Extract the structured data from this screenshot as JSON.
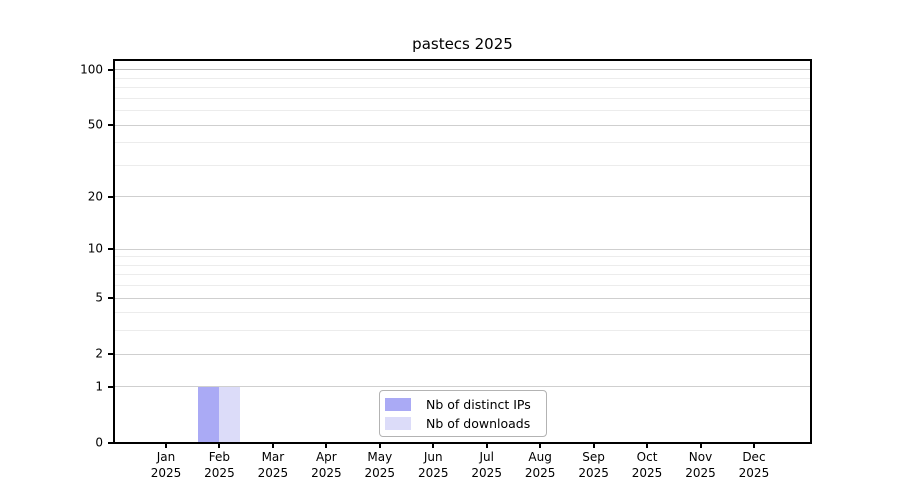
{
  "chart_data": {
    "type": "bar",
    "title": "pastecs 2025",
    "categories": [
      "Jan",
      "Feb",
      "Mar",
      "Apr",
      "May",
      "Jun",
      "Jul",
      "Aug",
      "Sep",
      "Oct",
      "Nov",
      "Dec"
    ],
    "category_year": "2025",
    "series": [
      {
        "name": "Nb of distinct IPs",
        "color": "#aaaaf5",
        "values": [
          0,
          1,
          0,
          0,
          0,
          0,
          0,
          0,
          0,
          0,
          0,
          0
        ]
      },
      {
        "name": "Nb of downloads",
        "color": "#dcdcf9",
        "values": [
          0,
          1,
          0,
          0,
          0,
          0,
          0,
          0,
          0,
          0,
          0,
          0
        ]
      }
    ],
    "yscale": "log1p",
    "ylim": [
      0,
      113
    ],
    "yticks": [
      0,
      1,
      2,
      5,
      10,
      20,
      50,
      100
    ],
    "yticks_minor": [
      3,
      4,
      6,
      7,
      8,
      9,
      30,
      40,
      60,
      70,
      80,
      90
    ],
    "grid": "horizontal",
    "legend_position": "lower-center"
  },
  "palette": {
    "axis": "#000000",
    "text": "#000000",
    "grid_major": "#cfcfcf",
    "grid_major_top": "#c0c0c0",
    "grid_minor": "#ececec",
    "legend_border": "#b3b3b3",
    "background": "#ffffff"
  }
}
